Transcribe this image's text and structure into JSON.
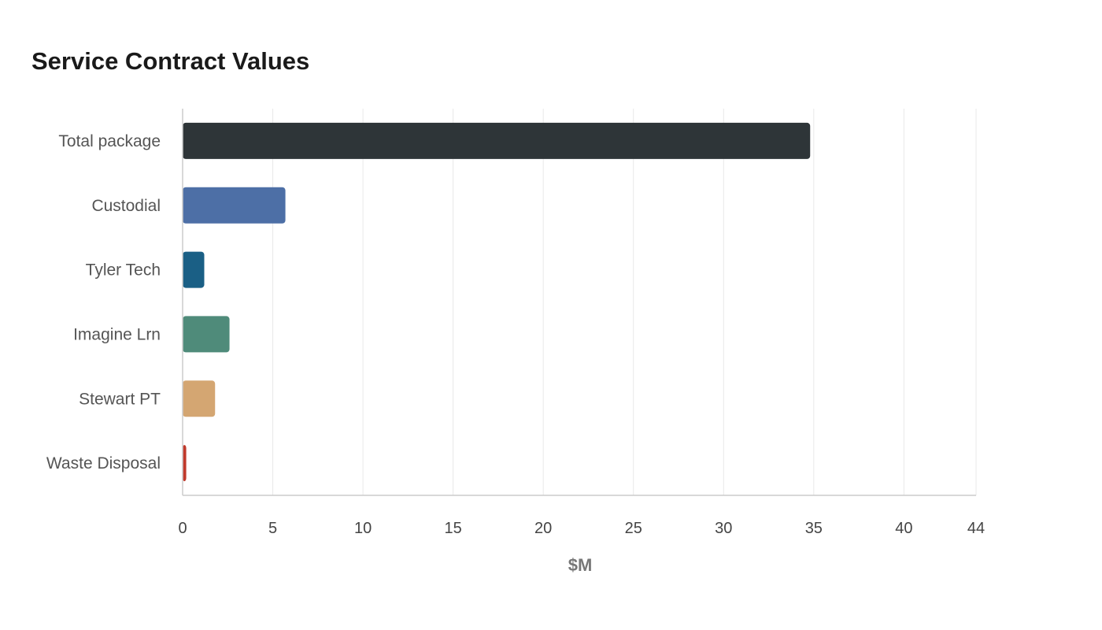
{
  "chart_data": {
    "type": "bar",
    "orientation": "horizontal",
    "title": "Service Contract Values",
    "xlabel": "$M",
    "ylabel": "",
    "categories": [
      "Total package",
      "Custodial",
      "Tyler Tech",
      "Imagine Lrn",
      "Stewart PT",
      "Waste Disposal"
    ],
    "values": [
      34.8,
      5.7,
      1.2,
      2.6,
      1.8,
      0.2
    ],
    "colors": [
      "#2e3538",
      "#4d6fa6",
      "#1a5f85",
      "#4f8b7a",
      "#d4a672",
      "#c0392b"
    ],
    "xlim": [
      0,
      44
    ],
    "xticks": [
      0,
      5,
      10,
      15,
      20,
      25,
      30,
      35,
      40,
      44
    ],
    "grid": true,
    "legend": "none"
  }
}
